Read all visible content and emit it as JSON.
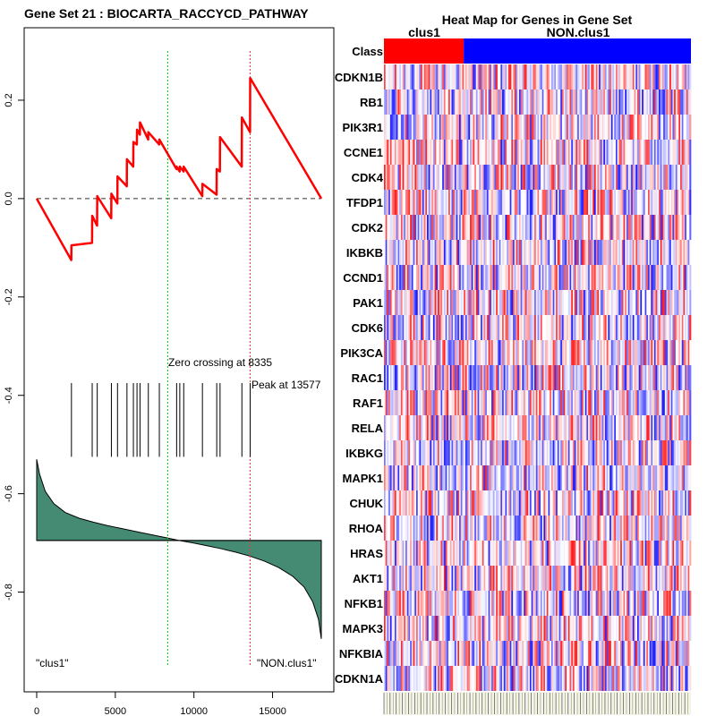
{
  "chart_data": [
    {
      "type": "line",
      "title": "Gene Set  21 : BIOCARTA_RACCYCD_PATHWAY",
      "xlabel": "",
      "ylabel": "",
      "xlim": [
        0,
        18100
      ],
      "ylim": [
        -0.95,
        0.3
      ],
      "x_ticks": [
        0,
        5000,
        10000,
        15000
      ],
      "x_tick_labels": [
        "0",
        "5000",
        "10000",
        "15000"
      ],
      "y_ticks": [
        0.2,
        0.0,
        -0.2,
        -0.4,
        -0.6,
        -0.8
      ],
      "y_tick_labels": [
        "0.2",
        "0.0",
        "-0.2",
        "-0.4",
        "-0.6",
        "-0.8"
      ],
      "hit_positions": [
        2210,
        3530,
        3850,
        4750,
        5140,
        5740,
        6150,
        6380,
        6570,
        7100,
        7800,
        8900,
        9100,
        9350,
        10540,
        11450,
        11660,
        13050,
        13577
      ],
      "running_score": {
        "x": [
          0,
          2200,
          2210,
          3520,
          3530,
          3840,
          3850,
          4740,
          4750,
          5130,
          5140,
          5730,
          5740,
          6140,
          6150,
          6370,
          6380,
          6560,
          6570,
          7090,
          7100,
          7790,
          7800,
          8890,
          8900,
          9090,
          9100,
          9340,
          9350,
          10530,
          10540,
          11440,
          11450,
          11650,
          11660,
          13040,
          13050,
          13567,
          13577,
          18100
        ],
        "y": [
          0.0,
          -0.125,
          -0.095,
          -0.09,
          -0.035,
          -0.055,
          0.005,
          -0.04,
          0.01,
          -0.01,
          0.045,
          0.025,
          0.08,
          0.065,
          0.115,
          0.11,
          0.14,
          0.13,
          0.155,
          0.12,
          0.135,
          0.11,
          0.12,
          0.06,
          0.065,
          0.055,
          0.065,
          0.055,
          0.065,
          0.005,
          0.03,
          0.008,
          0.06,
          0.055,
          0.125,
          0.065,
          0.165,
          0.135,
          0.245,
          0.0
        ]
      },
      "ranked_metric_shape": {
        "x_fraction": [
          0.0,
          0.01,
          0.03,
          0.06,
          0.1,
          0.15,
          0.2,
          0.25,
          0.3,
          0.35,
          0.4,
          0.46,
          0.5,
          0.55,
          0.6,
          0.65,
          0.7,
          0.75,
          0.8,
          0.85,
          0.9,
          0.94,
          0.97,
          0.99,
          1.0
        ],
        "value": [
          -0.53,
          -0.56,
          -0.595,
          -0.62,
          -0.638,
          -0.65,
          -0.658,
          -0.665,
          -0.671,
          -0.677,
          -0.683,
          -0.69,
          -0.695,
          -0.7,
          -0.706,
          -0.712,
          -0.719,
          -0.727,
          -0.737,
          -0.75,
          -0.768,
          -0.79,
          -0.82,
          -0.855,
          -0.895
        ],
        "baseline": -0.695
      },
      "zero_crossing_x": 8335,
      "peak_x": 13577,
      "annotations": {
        "zero_crossing": "Zero crossing at 8335",
        "peak": "Peak at 13577",
        "left_label": "\"clus1\"",
        "right_label": "\"NON.clus1\""
      },
      "colors": {
        "running_score": "#ff0000",
        "metric_fill": "#458b74",
        "zero_line": "#00cc00",
        "peak_line": "#ff3030",
        "hits": "#000000",
        "dashed_zero": "#333333"
      }
    },
    {
      "type": "heatmap",
      "title": "Heat Map for Genes in Gene Set",
      "class_label": "Class",
      "classes": [
        {
          "name": "clus1",
          "fraction": 0.26,
          "color": "#ff0000"
        },
        {
          "name": "NON.clus1",
          "fraction": 0.74,
          "color": "#0000ff"
        }
      ],
      "genes": [
        "CDKN1B",
        "RB1",
        "PIK3R1",
        "CCNE1",
        "CDK4",
        "TFDP1",
        "CDK2",
        "IKBKB",
        "CCND1",
        "PAK1",
        "CDK6",
        "PIK3CA",
        "RAC1",
        "RAF1",
        "RELA",
        "IKBKG",
        "MAPK1",
        "CHUK",
        "RHOA",
        "HRAS",
        "AKT1",
        "NFKB1",
        "MAPK3",
        "NFKBIA",
        "CDKN1A"
      ],
      "sample_count": 200,
      "color_scale": {
        "low": "#0000ff",
        "mid": "#ffffff",
        "high": "#ff0000"
      }
    }
  ]
}
